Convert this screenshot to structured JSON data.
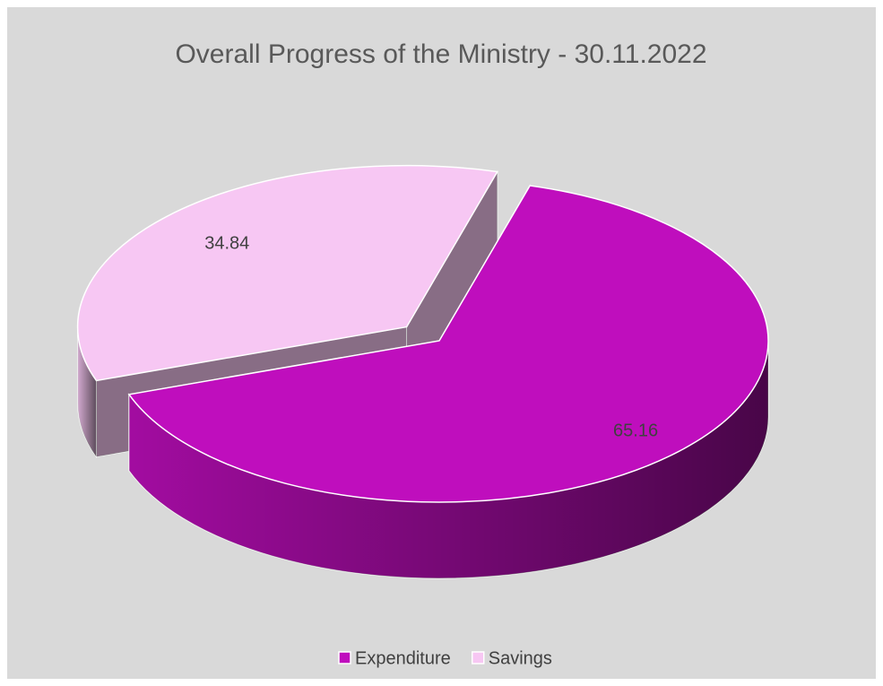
{
  "chart_data": {
    "type": "pie",
    "title": "Overall Progress of the Ministry - 30.11.2022",
    "categories": [
      "Expenditure",
      "Savings"
    ],
    "values": [
      65.16,
      34.84
    ],
    "colors": [
      "#bf0ebd",
      "#f7c7f3"
    ],
    "legend": "bottom"
  }
}
